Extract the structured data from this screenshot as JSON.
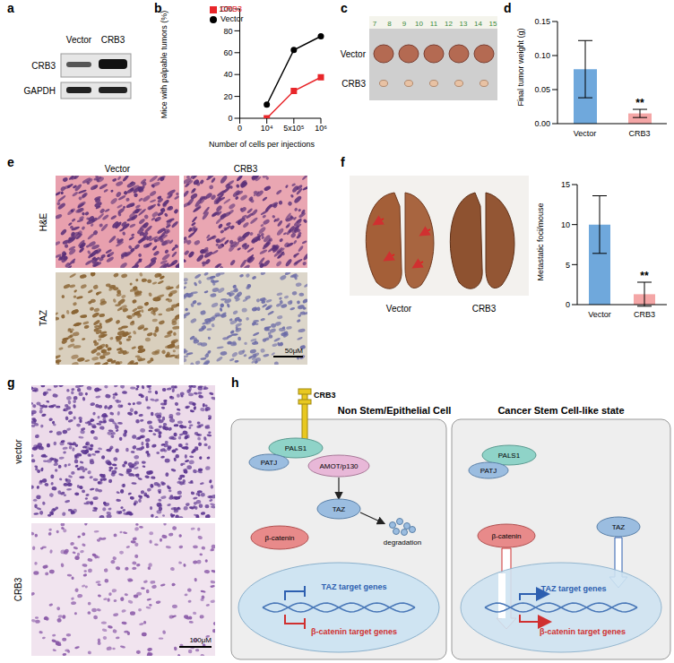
{
  "panel_labels": [
    "a",
    "b",
    "c",
    "d",
    "e",
    "f",
    "g",
    "h"
  ],
  "blot": {
    "lanes": [
      "Vector",
      "CRB3"
    ],
    "rows": [
      "CRB3",
      "GAPDH"
    ]
  },
  "chart_data": [
    {
      "type": "line",
      "categories": [
        "0",
        "10⁴",
        "5x10⁵",
        "10⁶"
      ],
      "xlabel": "Number of cells per injections",
      "ylabel": "Mice with palpable tumors (%)",
      "ylim": [
        0,
        100
      ],
      "yticks": [
        0,
        20,
        40,
        60,
        80,
        100
      ],
      "legend": "top left",
      "series": [
        {
          "name": "Vector",
          "color": "#000000",
          "marker": "circle",
          "values": [
            null,
            12.5,
            62.5,
            75
          ]
        },
        {
          "name": "CRB3",
          "color": "#e8262a",
          "marker": "square",
          "values": [
            null,
            0,
            25,
            37.5
          ]
        }
      ]
    },
    {
      "type": "bar",
      "categories": [
        "Vector",
        "CRB3"
      ],
      "values": [
        0.08,
        0.015
      ],
      "errors": [
        0.042,
        0.006
      ],
      "colors": [
        "#6fa8dc",
        "#f4a6a6"
      ],
      "ylabel": "Final tumor weight (g)",
      "ylim": [
        0,
        0.15
      ],
      "yticks": [
        {
          "value": 0,
          "label": "0.00"
        },
        {
          "value": 0.05,
          "label": "0.05"
        },
        {
          "value": 0.1,
          "label": "0.10"
        },
        {
          "value": 0.15,
          "label": "0.15"
        }
      ],
      "annotations": [
        {
          "text": "**",
          "category": "CRB3"
        }
      ]
    },
    {
      "type": "bar",
      "categories": [
        "Vector",
        "CRB3"
      ],
      "values": [
        10,
        1.3
      ],
      "errors": [
        3.6,
        1.5
      ],
      "colors": [
        "#6fa8dc",
        "#f4a6a6"
      ],
      "ylabel": "Metastatic foci/mouse",
      "ylim": [
        0,
        15
      ],
      "yticks": [
        0,
        5,
        10,
        15
      ],
      "annotations": [
        {
          "text": "**",
          "category": "CRB3"
        }
      ]
    }
  ],
  "tumor_photo": {
    "rows": [
      "Vector",
      "CRB3"
    ],
    "ruler": [
      "7",
      "8",
      "9",
      "10",
      "11",
      "12",
      "13",
      "14",
      "15"
    ]
  },
  "histology_e": {
    "columns": [
      "Vector",
      "CRB3"
    ],
    "rows": [
      "H&E",
      "TAZ"
    ],
    "scale_bar": "50μM"
  },
  "lung_photo": {
    "labels": [
      "Vector",
      "CRB3"
    ]
  },
  "histology_g": {
    "rows": [
      "vector",
      "CRB3"
    ],
    "scale_bar": "100μM"
  },
  "diagram": {
    "left_title": "Non Stem/Epithelial Cell",
    "right_title": "Cancer Stem Cell-like state",
    "receptor": "CRB3",
    "pals1": "PALS1",
    "patj": "PATJ",
    "amot": "AMOT/p130",
    "taz": "TAZ",
    "beta_catenin": "β-catenin",
    "degradation": "degradation",
    "taz_genes": "TAZ target genes",
    "bcat_genes": "β-catenin target genes"
  }
}
